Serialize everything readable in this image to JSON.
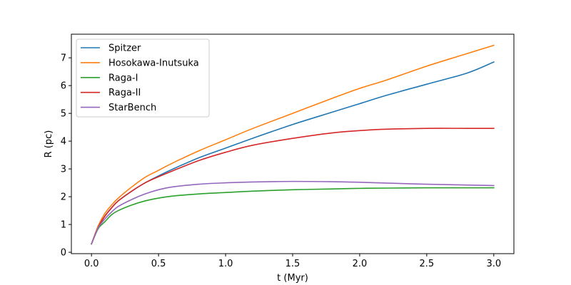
{
  "chart_data": {
    "type": "line",
    "xlabel": "t (Myr)",
    "ylabel": "R (pc)",
    "xlim": [
      -0.15,
      3.15
    ],
    "ylim": [
      -0.05,
      7.85
    ],
    "xticks": [
      0.0,
      0.5,
      1.0,
      1.5,
      2.0,
      2.5,
      3.0
    ],
    "xtick_labels": [
      "0.0",
      "0.5",
      "1.0",
      "1.5",
      "2.0",
      "2.5",
      "3.0"
    ],
    "yticks": [
      0,
      1,
      2,
      3,
      4,
      5,
      6,
      7
    ],
    "ytick_labels": [
      "0",
      "1",
      "2",
      "3",
      "4",
      "5",
      "6",
      "7"
    ],
    "grid": false,
    "legend_position": "upper-left",
    "x": [
      0.0,
      0.05,
      0.1,
      0.15,
      0.2,
      0.3,
      0.4,
      0.5,
      0.6,
      0.8,
      1.0,
      1.2,
      1.5,
      1.8,
      2.0,
      2.2,
      2.5,
      2.8,
      3.0
    ],
    "series": [
      {
        "name": "Spitzer",
        "color": "#1f77b4",
        "values": [
          0.3,
          0.9,
          1.3,
          1.6,
          1.85,
          2.2,
          2.5,
          2.75,
          2.98,
          3.4,
          3.75,
          4.1,
          4.6,
          5.05,
          5.35,
          5.65,
          6.05,
          6.45,
          6.85
        ]
      },
      {
        "name": "Hosokawa-Inutsuka",
        "color": "#ff7f0e",
        "values": [
          0.3,
          0.95,
          1.4,
          1.7,
          1.95,
          2.35,
          2.7,
          2.95,
          3.2,
          3.65,
          4.05,
          4.45,
          5.0,
          5.55,
          5.9,
          6.2,
          6.7,
          7.15,
          7.45
        ]
      },
      {
        "name": "Raga-I",
        "color": "#2ca02c",
        "values": [
          0.3,
          0.85,
          1.1,
          1.35,
          1.5,
          1.7,
          1.85,
          1.95,
          2.02,
          2.1,
          2.15,
          2.2,
          2.25,
          2.28,
          2.3,
          2.31,
          2.32,
          2.32,
          2.32
        ]
      },
      {
        "name": "Raga-II",
        "color": "#d62728",
        "values": [
          0.3,
          0.9,
          1.3,
          1.6,
          1.85,
          2.2,
          2.5,
          2.72,
          2.92,
          3.3,
          3.6,
          3.85,
          4.1,
          4.3,
          4.38,
          4.43,
          4.46,
          4.46,
          4.46
        ]
      },
      {
        "name": "StarBench",
        "color": "#9467bd",
        "values": [
          0.3,
          0.88,
          1.2,
          1.45,
          1.65,
          1.9,
          2.1,
          2.25,
          2.35,
          2.45,
          2.5,
          2.53,
          2.55,
          2.54,
          2.52,
          2.49,
          2.45,
          2.42,
          2.4
        ]
      }
    ]
  }
}
